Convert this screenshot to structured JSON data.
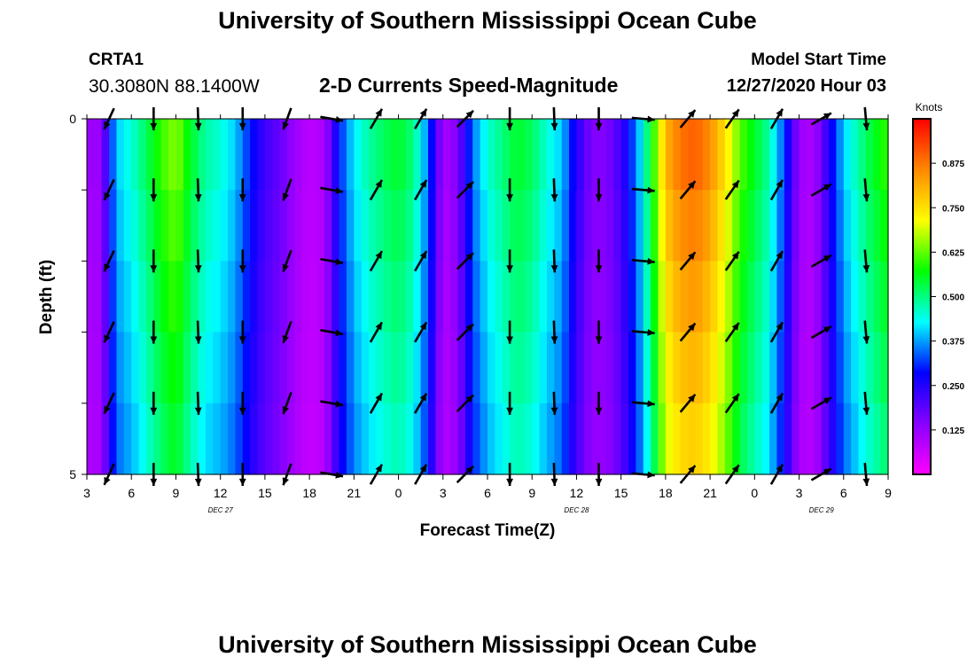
{
  "header": {
    "title": "University of Southern Mississippi Ocean Cube",
    "station": "CRTA1",
    "coords": "30.3080N 88.1400W",
    "subtitle": "2-D Currents Speed-Magnitude",
    "model_start_label": "Model Start Time",
    "model_start_value": "12/27/2020 Hour 03"
  },
  "footer": {
    "title": "University of Southern Mississippi Ocean Cube"
  },
  "chart_data": {
    "type": "heatmap",
    "title": "2-D Currents Speed-Magnitude",
    "xlabel": "Forecast Time(Z)",
    "ylabel": "Depth (ft)",
    "ylim": [
      0,
      5
    ],
    "yticks": [
      "0",
      "5"
    ],
    "xticks": [
      "3",
      "6",
      "9",
      "12",
      "15",
      "18",
      "21",
      "0",
      "3",
      "6",
      "9",
      "12",
      "15",
      "18",
      "21",
      "0",
      "3",
      "6",
      "9"
    ],
    "day_labels": [
      {
        "label": "DEC 27",
        "x_hours": 12
      },
      {
        "label": "DEC 28",
        "x_hours": 36
      },
      {
        "label": "DEC 29",
        "x_hours": 52.5
      }
    ],
    "x_hours_range": [
      3,
      57
    ],
    "colorbar": {
      "unit": "Knots",
      "range": [
        0,
        1.0
      ],
      "ticks": [
        "0.125",
        "0.250",
        "0.375",
        "0.500",
        "0.625",
        "0.750",
        "0.875"
      ],
      "colors": [
        "#ff00ff",
        "#8800ff",
        "#0000ff",
        "#00ffff",
        "#00ff00",
        "#ffff00",
        "#ff8800",
        "#ff0000"
      ]
    },
    "depth_rows": [
      0,
      1,
      2,
      3,
      4
    ],
    "speed_by_hour": [
      [
        3,
        0.12
      ],
      [
        4,
        0.12
      ],
      [
        4.5,
        0.28
      ],
      [
        5,
        0.4
      ],
      [
        6,
        0.45
      ],
      [
        7,
        0.52
      ],
      [
        8,
        0.6
      ],
      [
        9,
        0.65
      ],
      [
        10,
        0.55
      ],
      [
        11,
        0.48
      ],
      [
        12,
        0.45
      ],
      [
        13,
        0.4
      ],
      [
        14,
        0.3
      ],
      [
        15,
        0.22
      ],
      [
        16,
        0.18
      ],
      [
        17,
        0.12
      ],
      [
        18,
        0.08
      ],
      [
        19,
        0.1
      ],
      [
        20,
        0.3
      ],
      [
        21,
        0.42
      ],
      [
        22,
        0.48
      ],
      [
        23,
        0.52
      ],
      [
        24,
        0.55
      ],
      [
        25,
        0.5
      ],
      [
        26,
        0.35
      ],
      [
        27,
        0.1
      ],
      [
        28,
        0.15
      ],
      [
        29,
        0.35
      ],
      [
        30,
        0.45
      ],
      [
        31,
        0.5
      ],
      [
        32,
        0.55
      ],
      [
        33,
        0.52
      ],
      [
        34,
        0.45
      ],
      [
        35,
        0.4
      ],
      [
        36,
        0.25
      ],
      [
        37,
        0.15
      ],
      [
        38,
        0.15
      ],
      [
        39,
        0.22
      ],
      [
        40,
        0.35
      ],
      [
        41,
        0.55
      ],
      [
        42,
        0.8
      ],
      [
        43,
        0.88
      ],
      [
        44,
        0.9
      ],
      [
        45,
        0.85
      ],
      [
        46,
        0.75
      ],
      [
        47,
        0.62
      ],
      [
        48,
        0.55
      ],
      [
        49,
        0.48
      ],
      [
        50,
        0.32
      ],
      [
        51,
        0.12
      ],
      [
        52,
        0.1
      ],
      [
        53,
        0.25
      ],
      [
        54,
        0.4
      ],
      [
        55,
        0.48
      ],
      [
        56,
        0.55
      ],
      [
        57,
        0.6
      ]
    ],
    "vectors": {
      "columns_hours": [
        4.5,
        7.5,
        10.5,
        13.5,
        16.5,
        19.5,
        22.5,
        25.5,
        28.5,
        31.5,
        34.5,
        37.5,
        40.5,
        43.5,
        46.5,
        49.5,
        52.5,
        55.5
      ],
      "rows_depth": [
        0,
        1,
        2,
        3,
        4,
        5
      ],
      "direction_deg_by_column": [
        205,
        180,
        178,
        180,
        200,
        100,
        30,
        30,
        45,
        180,
        178,
        180,
        95,
        40,
        35,
        30,
        60,
        175
      ],
      "speed_scale": 1.0
    }
  }
}
